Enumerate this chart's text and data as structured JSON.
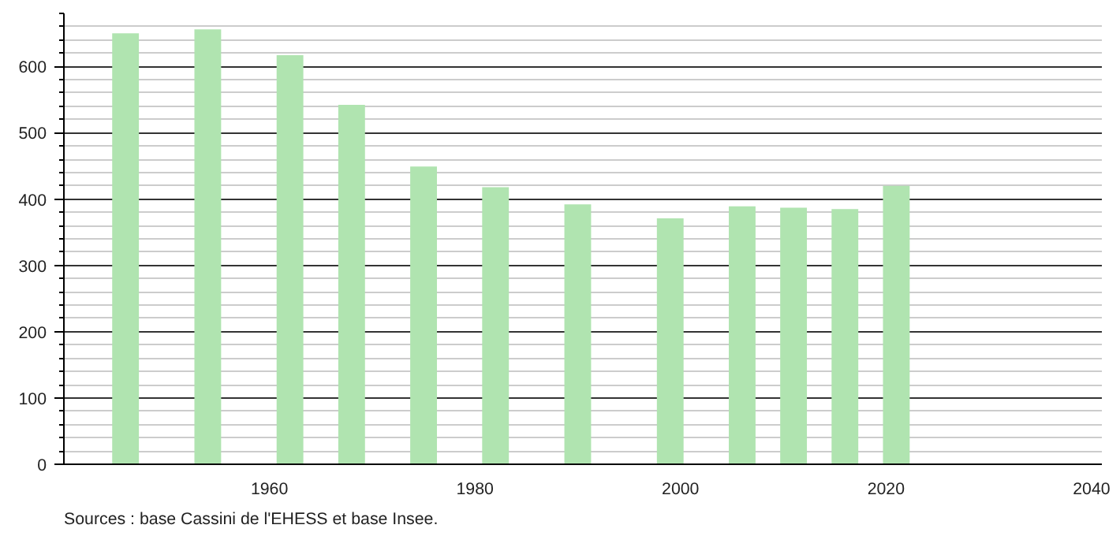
{
  "chart_data": {
    "type": "bar",
    "x": [
      1946,
      1954,
      1962,
      1968,
      1975,
      1982,
      1990,
      1999,
      2006,
      2011,
      2016,
      2021
    ],
    "values": [
      650,
      656,
      617,
      542,
      449,
      418,
      392,
      371,
      389,
      387,
      385,
      420
    ],
    "color": "#b0e4b0",
    "xlim": [
      1940,
      2041
    ],
    "xticks": [
      1960,
      1980,
      2000,
      2020,
      2040
    ],
    "ylim": [
      0,
      680
    ],
    "yticks": [
      0,
      100,
      200,
      300,
      400,
      500,
      600
    ],
    "grid": "y",
    "annotations": [
      "Sources : base Cassini de l'EHESS et base Insee."
    ]
  }
}
